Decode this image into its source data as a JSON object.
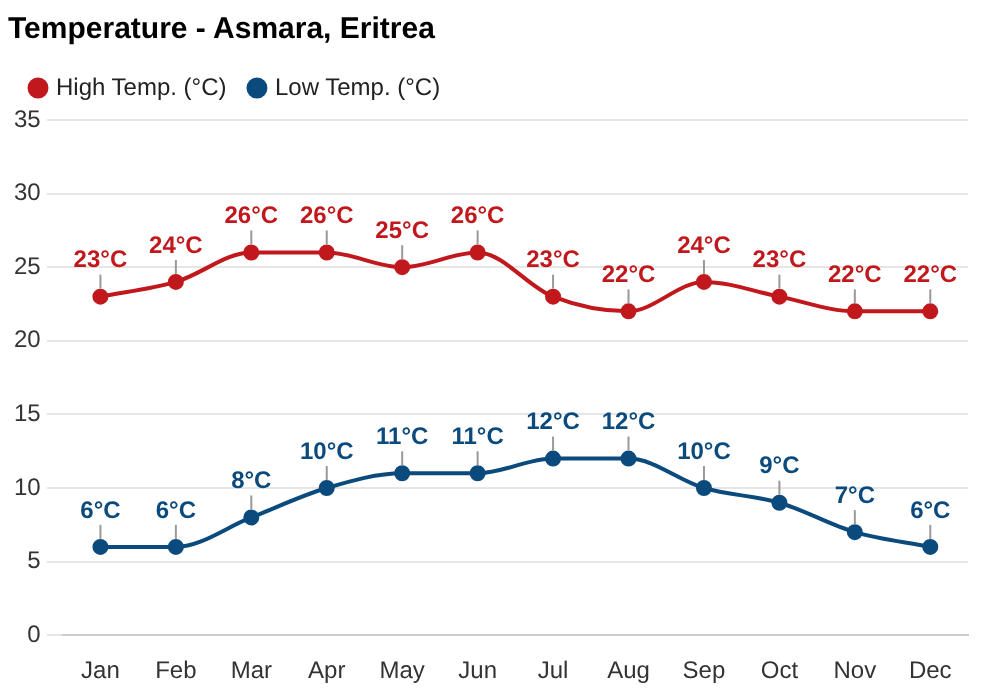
{
  "chart_data": {
    "type": "line",
    "title": "Temperature - Asmara, Eritrea",
    "categories": [
      "Jan",
      "Feb",
      "Mar",
      "Apr",
      "May",
      "Jun",
      "Jul",
      "Aug",
      "Sep",
      "Oct",
      "Nov",
      "Dec"
    ],
    "series": [
      {
        "name": "High Temp. (°C)",
        "color": "#c0181c",
        "values": [
          23,
          24,
          26,
          26,
          25,
          26,
          23,
          22,
          24,
          23,
          22,
          22
        ],
        "value_labels": [
          "23°C",
          "24°C",
          "26°C",
          "26°C",
          "25°C",
          "26°C",
          "23°C",
          "22°C",
          "24°C",
          "23°C",
          "22°C",
          "22°C"
        ]
      },
      {
        "name": "Low Temp. (°C)",
        "color": "#0b4a7c",
        "values": [
          6,
          6,
          8,
          10,
          11,
          11,
          12,
          12,
          10,
          9,
          7,
          6
        ],
        "value_labels": [
          "6°C",
          "6°C",
          "8°C",
          "10°C",
          "11°C",
          "11°C",
          "12°C",
          "12°C",
          "10°C",
          "9°C",
          "7°C",
          "6°C"
        ]
      }
    ],
    "ylim": [
      0,
      35
    ],
    "yticks": [
      0,
      5,
      10,
      15,
      20,
      25,
      30,
      35
    ],
    "grid": "y",
    "legend": "top left",
    "marker": "circle",
    "line_style": "solid"
  }
}
